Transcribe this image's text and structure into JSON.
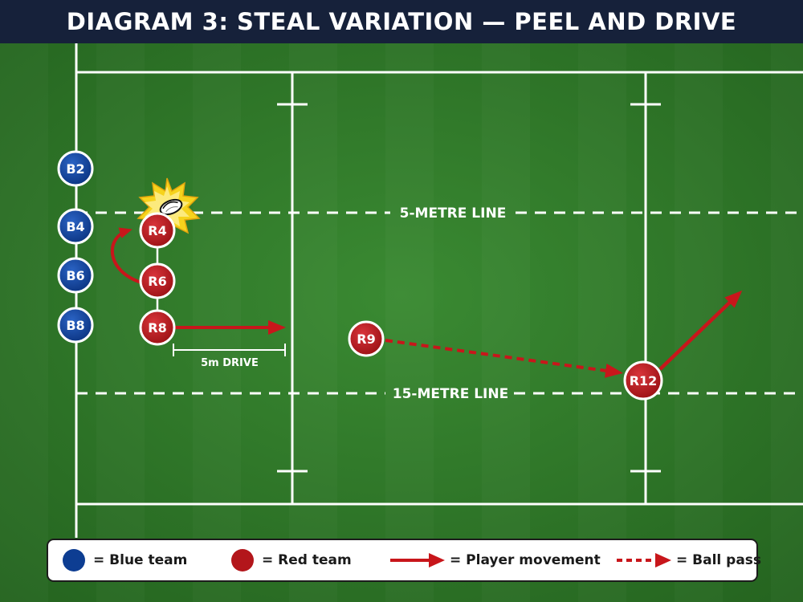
{
  "title": "DIAGRAM 3: STEAL VARIATION — PEEL AND DRIVE",
  "lines": {
    "five_metre": "5-METRE LINE",
    "fifteen_metre": "15-METRE LINE",
    "drive_label": "5m DRIVE"
  },
  "players": {
    "blue": [
      "B2",
      "B4",
      "B6",
      "B8"
    ],
    "red": [
      "R4",
      "R6",
      "R8",
      "R9",
      "R12"
    ]
  },
  "legend": {
    "blue_label": "= Blue team",
    "red_label": "= Red team",
    "movement_label": "= Player movement",
    "pass_label": "= Ball pass"
  },
  "colors": {
    "blue_team": "#0d3d92",
    "red_team": "#b3161b",
    "arrow": "#c8161b",
    "pitch": "#2f7a2a"
  }
}
